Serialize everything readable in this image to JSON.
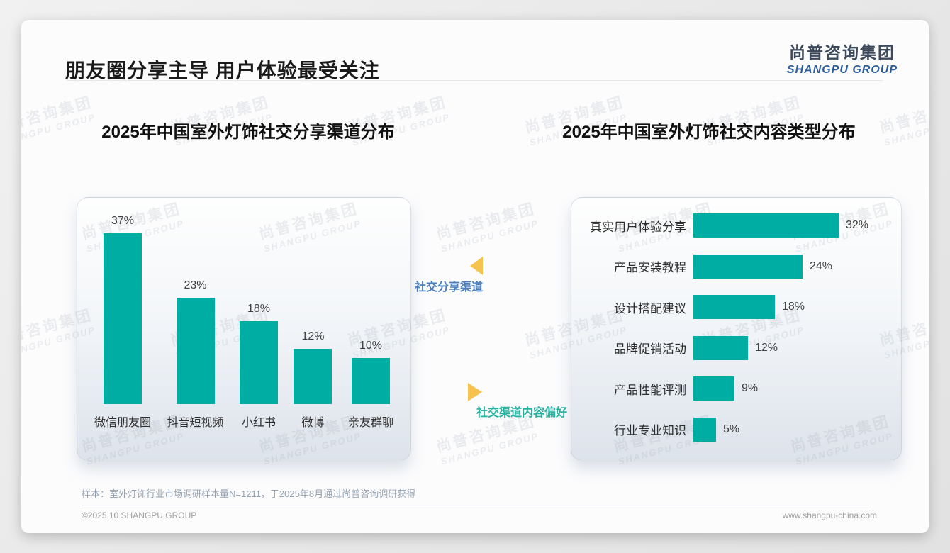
{
  "page": {
    "title": "朋友圈分享主导 用户体验最受关注",
    "logo_cn": "尚普咨询集团",
    "logo_en": "SHANGPU GROUP"
  },
  "annotations": {
    "left_label": "社交分享渠道",
    "right_label": "社交渠道内容偏好",
    "arrow_color": "#F6C44E",
    "left_label_color": "#4A7EBD",
    "right_label_color": "#26B3A0"
  },
  "chart_data": [
    {
      "type": "bar",
      "orientation": "vertical",
      "title": "2025年中国室外灯饰社交分享渠道分布",
      "categories": [
        "微信朋友圈",
        "抖音短视频",
        "小红书",
        "微博",
        "亲友群聊"
      ],
      "values": [
        37,
        23,
        18,
        12,
        10
      ],
      "value_labels": [
        "37%",
        "23%",
        "18%",
        "12%",
        "10%"
      ],
      "unit": "%",
      "bar_color": "#00ADA3",
      "ylim": [
        0,
        40
      ],
      "grid": false,
      "legend": "none"
    },
    {
      "type": "bar",
      "orientation": "horizontal",
      "title": "2025年中国室外灯饰社交内容类型分布",
      "categories": [
        "真实用户体验分享",
        "产品安装教程",
        "设计搭配建议",
        "品牌促销活动",
        "产品性能评测",
        "行业专业知识"
      ],
      "values": [
        32,
        24,
        18,
        12,
        9,
        5
      ],
      "value_labels": [
        "32%",
        "24%",
        "18%",
        "12%",
        "9%",
        "5%"
      ],
      "unit": "%",
      "bar_color": "#00ADA3",
      "xlim": [
        0,
        35
      ],
      "grid": false,
      "legend": "none"
    }
  ],
  "watermark": {
    "cn": "尚普咨询集团",
    "en": "SHANGPU GROUP"
  },
  "footer": {
    "note": "样本：室外灯饰行业市场调研样本量N=1211，于2025年8月通过尚普咨询调研获得",
    "copyright": "©2025.10 SHANGPU GROUP",
    "website": "www.shangpu-china.com"
  },
  "colors": {
    "bar_teal": "#00ADA3",
    "title_text": "#1A1A1A",
    "logo_dark": "#3D4A5C",
    "logo_blue": "#2B5D9B"
  }
}
